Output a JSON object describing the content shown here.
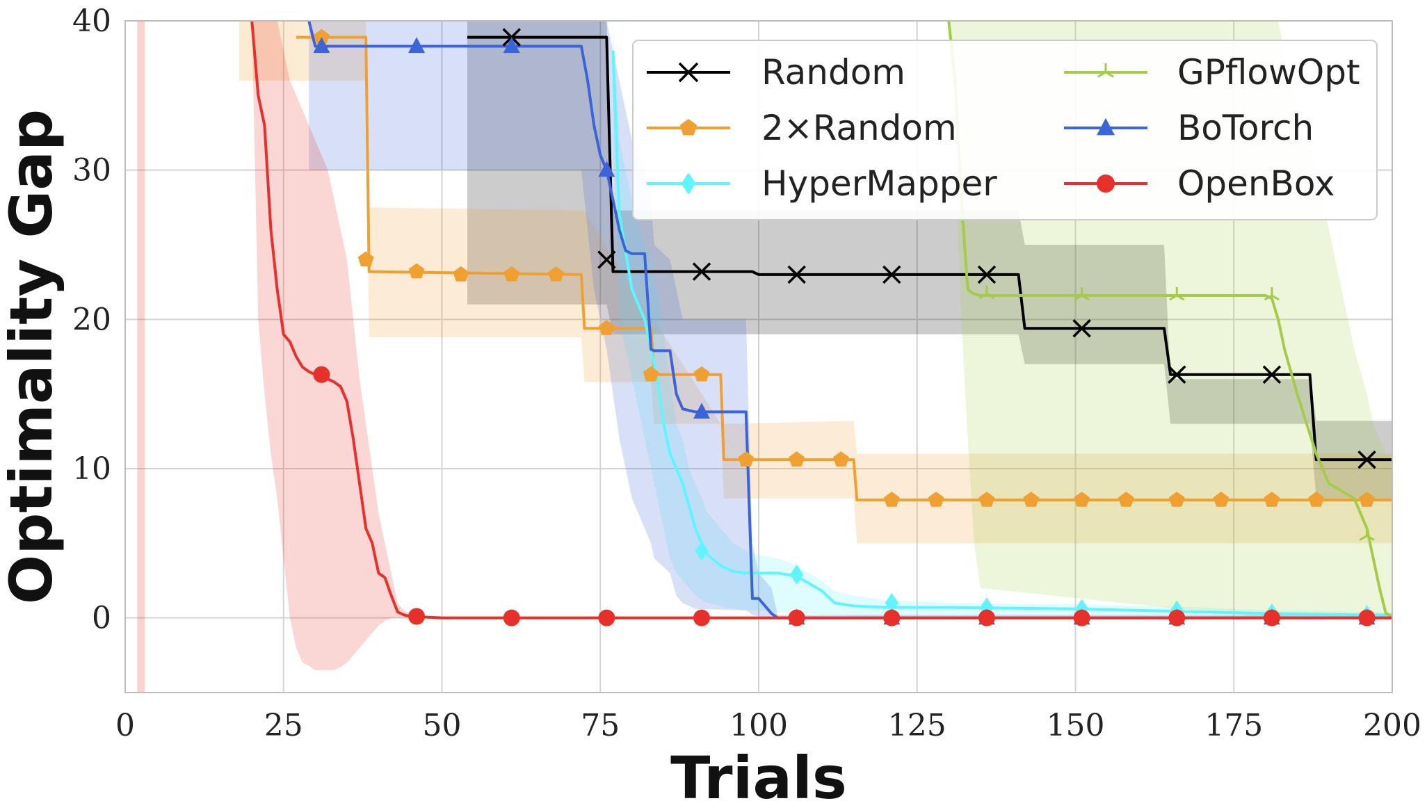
{
  "chart_data": {
    "type": "line",
    "title": "",
    "xlabel": "Trials",
    "ylabel": "Optimality Gap",
    "xlim": [
      0,
      200
    ],
    "ylim": [
      -5,
      40
    ],
    "xticks": [
      "0",
      "25",
      "50",
      "75",
      "100",
      "125",
      "150",
      "175",
      "200"
    ],
    "yticks": [
      "0",
      "10",
      "20",
      "30",
      "40"
    ],
    "grid": true,
    "legend_position": "top-right",
    "series": [
      {
        "name": "Random",
        "color": "#000000",
        "marker": "x",
        "x": [
          54,
          76,
          77,
          99,
          100,
          141,
          142,
          164,
          165,
          187,
          188,
          200
        ],
        "y": [
          38.9,
          38.9,
          23.2,
          23.2,
          23.0,
          23.0,
          19.4,
          19.4,
          16.3,
          16.3,
          10.6,
          10.6
        ],
        "upper": [
          40,
          40,
          27.3,
          27.3,
          27.3,
          27.3,
          25,
          25,
          16,
          16,
          13.2,
          13.2
        ],
        "lower": [
          21,
          21,
          19,
          19,
          19,
          19,
          17,
          17,
          13,
          13,
          8,
          8
        ],
        "markers_x": [
          61,
          76,
          91,
          106,
          121,
          136,
          151,
          166,
          181,
          196
        ],
        "markers_y": [
          38.9,
          24,
          23.2,
          23.0,
          23.0,
          23.0,
          19.4,
          16.3,
          16.3,
          10.6
        ]
      },
      {
        "name": "2×Random",
        "color": "#f0a030",
        "marker": "pentagon",
        "x": [
          27,
          38,
          38.5,
          72,
          72.5,
          83,
          83.5,
          94,
          94.5,
          115,
          115.5,
          200
        ],
        "y": [
          38.9,
          38.9,
          23.2,
          23.0,
          19.4,
          19.4,
          16.3,
          16.3,
          10.6,
          10.6,
          7.9,
          7.9
        ],
        "upper": [
          40,
          40,
          27.5,
          27.3,
          27.3,
          20,
          20,
          13,
          13,
          13.2,
          11,
          11
        ],
        "lower": [
          36,
          36,
          18.8,
          18.8,
          15.8,
          15.8,
          13,
          13,
          8,
          8,
          5,
          5
        ],
        "markers_x": [
          31,
          38,
          46,
          53,
          61,
          68,
          76,
          83,
          91,
          98,
          106,
          113,
          121,
          128,
          136,
          143,
          151,
          158,
          166,
          173,
          181,
          188,
          196
        ],
        "markers_y": [
          38.9,
          24,
          23.2,
          23.0,
          23.0,
          23.0,
          19.4,
          16.3,
          16.3,
          10.6,
          10.6,
          10.6,
          7.9,
          7.9,
          7.9,
          7.9,
          7.9,
          7.9,
          7.9,
          7.9,
          7.9,
          7.9,
          7.9
        ]
      },
      {
        "name": "HyperMapper",
        "color": "#5ff5ff",
        "marker": "diamond",
        "x": [
          77,
          78,
          80,
          82,
          83,
          84,
          85,
          86,
          87,
          88,
          89,
          90,
          91,
          92,
          94,
          96,
          98,
          100,
          103,
          106,
          108,
          110,
          112,
          115,
          120,
          130,
          150,
          170,
          180,
          195,
          200
        ],
        "y": [
          38,
          27,
          22,
          20,
          18,
          16,
          13,
          11,
          10,
          9,
          7.5,
          6,
          5,
          4.2,
          3.5,
          3.1,
          3.0,
          3.0,
          3.0,
          2.8,
          2.3,
          1.8,
          1.0,
          0.8,
          0.7,
          0.7,
          0.6,
          0.4,
          0.3,
          0.2,
          0.2
        ],
        "upper": [
          40,
          32,
          28,
          25,
          24,
          22,
          19,
          16,
          13,
          12,
          10,
          9,
          8,
          7,
          6,
          5,
          4.5,
          4.2,
          4.0,
          3.5,
          3.0,
          2.5,
          1.8,
          1.5,
          1.2,
          1.0,
          0.9,
          0.7,
          0.5,
          0.4,
          0.4
        ],
        "lower": [
          32,
          20,
          16,
          12,
          10,
          8,
          6,
          4,
          3,
          2.5,
          2.0,
          1.5,
          1.2,
          1.0,
          0.8,
          0.6,
          0.5,
          0.5,
          0.4,
          0.3,
          0.3,
          0.2,
          0.2,
          0.1,
          0.1,
          0.1,
          0.1,
          0.0,
          0.0,
          0.0,
          0.0
        ],
        "markers_x": [
          91,
          106,
          121,
          136,
          151,
          166,
          181,
          196
        ],
        "markers_y": [
          4.5,
          2.9,
          1.0,
          0.7,
          0.6,
          0.5,
          0.3,
          0.2
        ]
      },
      {
        "name": "GPflowOpt",
        "color": "#a4cc48",
        "marker": "tri",
        "x": [
          130,
          131,
          132,
          133,
          134,
          135,
          180,
          181,
          182,
          183,
          185,
          188,
          190,
          192,
          194,
          196,
          197,
          198,
          199,
          200
        ],
        "y": [
          40,
          36,
          28,
          22,
          21.7,
          21.6,
          21.6,
          21.4,
          20,
          18,
          15,
          11,
          9,
          8.5,
          8,
          6,
          4,
          2,
          0.3,
          0.1
        ],
        "upper": [
          40,
          40,
          40,
          40,
          40,
          40,
          40,
          40,
          40,
          38,
          34,
          30,
          26,
          22,
          18,
          15,
          13,
          12,
          11,
          11
        ],
        "lower": [
          40,
          30,
          20,
          12,
          5,
          2,
          0,
          0,
          0,
          0,
          0,
          0,
          0,
          0,
          0,
          0,
          0,
          0,
          0,
          0
        ],
        "markers_x": [
          136,
          151,
          166,
          181,
          196
        ],
        "markers_y": [
          21.7,
          21.6,
          21.6,
          21.6,
          5.5
        ]
      },
      {
        "name": "BoTorch",
        "color": "#3a64d8",
        "marker": "triangle",
        "x": [
          29,
          30,
          31,
          72,
          73,
          74,
          75,
          76,
          77,
          78,
          79,
          80,
          82,
          83,
          83.5,
          86,
          87,
          88,
          90,
          98,
          99,
          100,
          102,
          103,
          200
        ],
        "y": [
          40,
          38.3,
          38.3,
          38.3,
          36,
          33,
          31,
          30,
          28,
          26,
          24.6,
          24.4,
          24.4,
          18,
          17.9,
          17.9,
          15,
          14,
          13.8,
          13.8,
          1.3,
          1.3,
          0.3,
          0.0,
          0.0
        ],
        "upper": [
          40,
          40,
          40,
          40,
          40,
          40,
          40,
          40,
          38,
          36,
          34,
          32,
          30,
          28,
          25,
          24,
          22,
          20,
          20,
          20,
          5,
          3,
          2,
          0.2,
          0.2
        ],
        "lower": [
          30,
          30,
          30,
          30,
          26,
          22,
          20,
          18,
          15,
          12,
          10,
          8,
          6,
          5,
          4,
          3,
          1.5,
          1.0,
          0.6,
          0.5,
          0.2,
          0.1,
          0.0,
          0.0,
          0.0
        ],
        "markers_x": [
          31,
          46,
          61,
          76,
          91,
          106,
          121,
          136,
          151,
          166,
          181,
          196
        ],
        "markers_y": [
          38.3,
          38.3,
          38.3,
          30,
          13.8,
          0.0,
          0.0,
          0.0,
          0.0,
          0.0,
          0.0,
          0.0
        ]
      },
      {
        "name": "OpenBox",
        "color": "#e8302a",
        "marker": "circle",
        "x": [
          20,
          21,
          22,
          23,
          24,
          25,
          26,
          27,
          28,
          29,
          30,
          31,
          32,
          33,
          34,
          35,
          36,
          37,
          38,
          39,
          40,
          41,
          42,
          43,
          44,
          45,
          50,
          200
        ],
        "y": [
          40,
          35,
          33,
          26,
          22,
          19,
          18.5,
          17.5,
          16.8,
          16.5,
          16.3,
          16.3,
          16,
          15.8,
          15.5,
          14.5,
          12,
          9,
          6,
          5,
          3,
          2.7,
          1.5,
          0.4,
          0.2,
          0.1,
          0.0,
          0.0
        ],
        "upper": [
          40,
          40,
          40,
          40,
          40,
          38,
          36,
          35,
          34,
          33,
          32,
          31,
          30,
          28,
          26,
          24,
          20,
          16,
          13,
          10,
          7,
          5,
          3,
          1.0,
          0.5,
          0.3,
          0.0,
          0.0
        ],
        "lower": [
          40,
          20,
          15,
          11,
          8,
          4,
          0,
          -2,
          -3,
          -3.2,
          -3.5,
          -3.5,
          -3.5,
          -3.5,
          -3.3,
          -3.0,
          -2.5,
          -2.0,
          -1.5,
          -1.0,
          -0.5,
          -0.2,
          0.0,
          0.0,
          0.0,
          0.0,
          0.0,
          0.0
        ],
        "markers_x": [
          31,
          46,
          61,
          76,
          91,
          106,
          121,
          136,
          151,
          166,
          181,
          196
        ],
        "markers_y": [
          16.3,
          0.1,
          0.0,
          0.0,
          0.0,
          0.0,
          0.0,
          0.0,
          0.0,
          0.0,
          0.0,
          0.0
        ]
      }
    ],
    "bands": [
      {
        "color": "#f0a030",
        "x": [
          18,
          27
        ],
        "lower": 36,
        "upper": 40
      },
      {
        "color": "#e8302a",
        "x": [
          1.9,
          3.1
        ],
        "lower": -5,
        "upper": 40
      }
    ]
  }
}
